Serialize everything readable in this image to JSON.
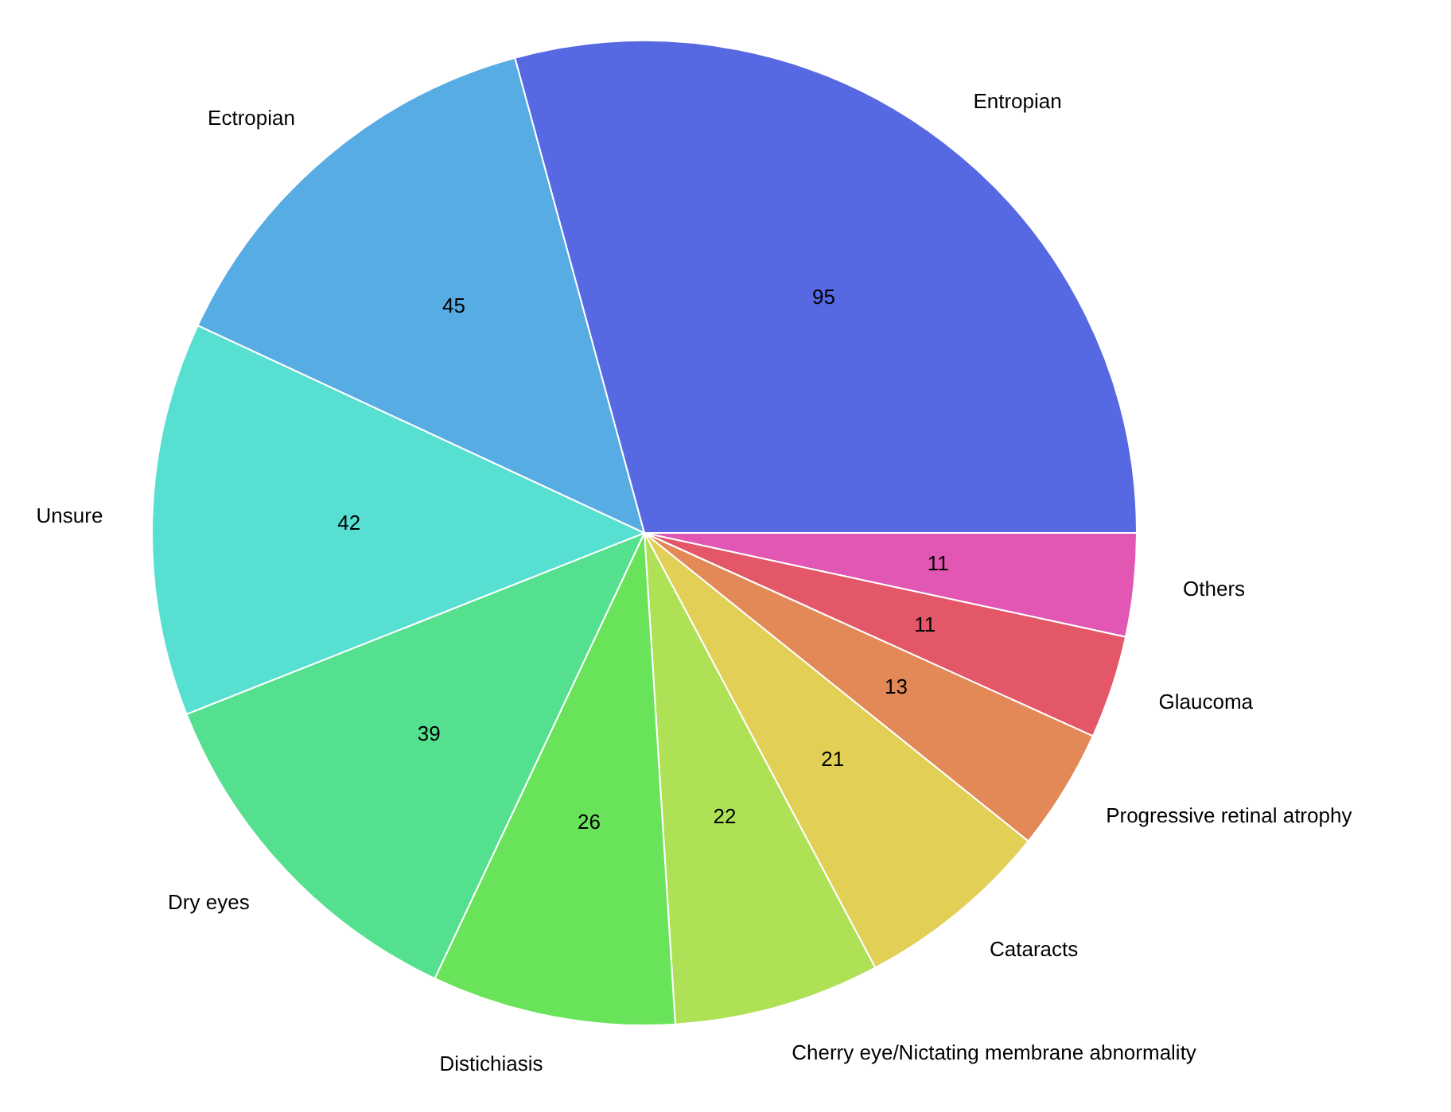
{
  "chart_data": {
    "type": "pie",
    "categories": [
      "Entropian",
      "Ectropian",
      "Unsure",
      "Dry eyes",
      "Distichiasis",
      "Cherry eye/Nictating membrane abnormality",
      "Cataracts",
      "Progressive retinal atrophy",
      "Glaucoma",
      "Others"
    ],
    "values": [
      95,
      45,
      42,
      39,
      26,
      22,
      21,
      13,
      11,
      11
    ],
    "colors": [
      "#5768e3",
      "#56ace3",
      "#57e0d2",
      "#55e08f",
      "#68e35a",
      "#afe157",
      "#e1cf56",
      "#e38957",
      "#e35768",
      "#e257b3"
    ],
    "data_labels": true,
    "legend": false
  }
}
